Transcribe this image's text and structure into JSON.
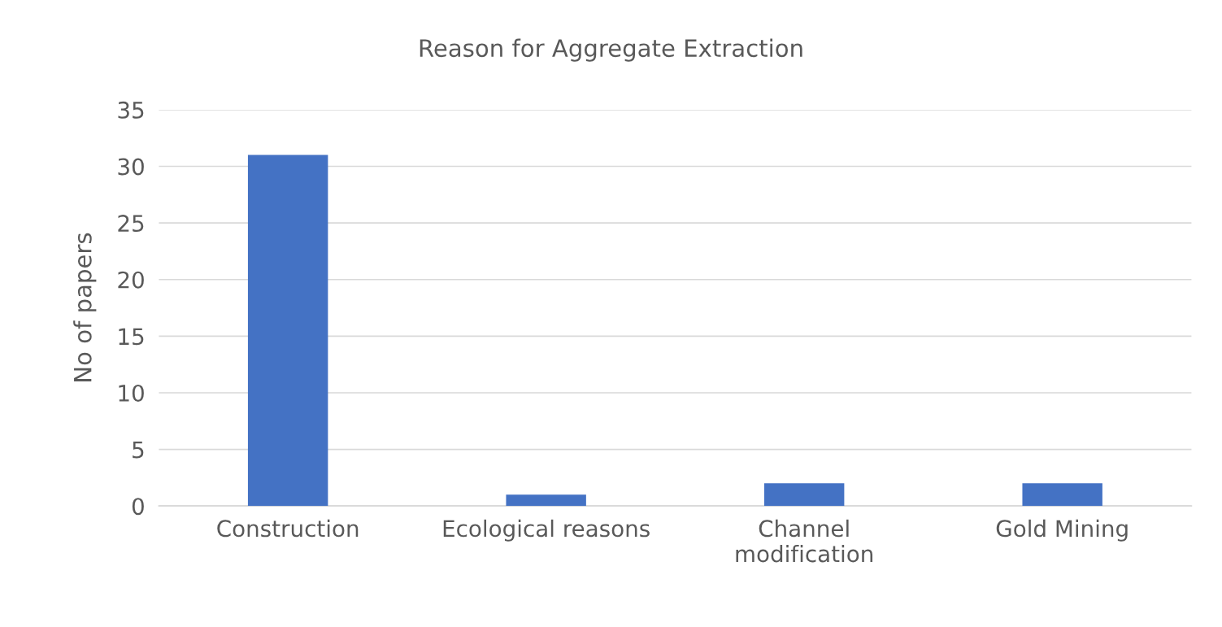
{
  "chart_data": {
    "type": "bar",
    "title": "Reason for Aggregate Extraction",
    "ylabel": "No of papers",
    "categories": [
      "Construction",
      "Ecological reasons",
      "Channel\nmodification",
      "Gold Mining"
    ],
    "values": [
      31,
      1,
      2,
      2
    ],
    "color": "#4472c4",
    "ylim": [
      0,
      35
    ],
    "yticks": [
      0,
      5,
      10,
      15,
      20,
      25,
      30,
      35
    ],
    "grid": "y"
  }
}
